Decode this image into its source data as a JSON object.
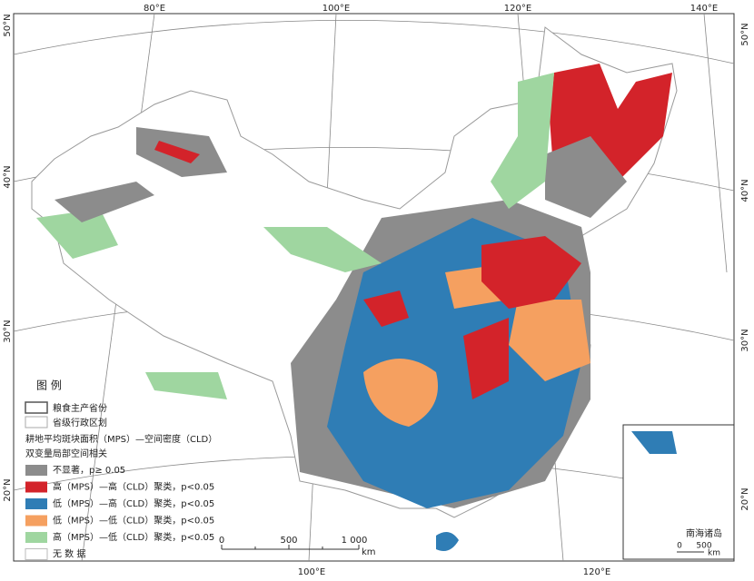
{
  "graticule": {
    "top": [
      "80°E",
      "100°E",
      "120°E",
      "140°E"
    ],
    "left": [
      "50°N",
      "40°N",
      "30°N",
      "20°N"
    ],
    "right": [
      "50°N",
      "40°N",
      "30°N",
      "20°N"
    ],
    "bottom": [
      "100°E",
      "120°E"
    ]
  },
  "legend": {
    "title": "图 例",
    "boundaries": [
      "粮食主产省份",
      "省级行政区划"
    ],
    "subtitle1": "耕地平均斑块面积（MPS）—空间密度（CLD）",
    "subtitle2": "双变量局部空间相关",
    "items": [
      {
        "label": "不显著，p≥ 0.05",
        "color": "#8c8c8c"
      },
      {
        "label": "高（MPS）—高（CLD）聚类，p<0.05",
        "color": "#d3232a"
      },
      {
        "label": "低（MPS）—高（CLD）聚类，p<0.05",
        "color": "#2f7db5"
      },
      {
        "label": "低（MPS）—低（CLD）聚类，p<0.05",
        "color": "#f5a060"
      },
      {
        "label": "高（MPS）—低（CLD）聚类，p<0.05",
        "color": "#9fd6a0"
      },
      {
        "label": "无 数 据",
        "color": "#ffffff"
      }
    ]
  },
  "scale": {
    "labels": [
      "0",
      "500",
      "1 000"
    ],
    "unit": "km"
  },
  "inset": {
    "title": "南海诸岛",
    "labels": [
      "0",
      "500"
    ],
    "unit": "km"
  }
}
